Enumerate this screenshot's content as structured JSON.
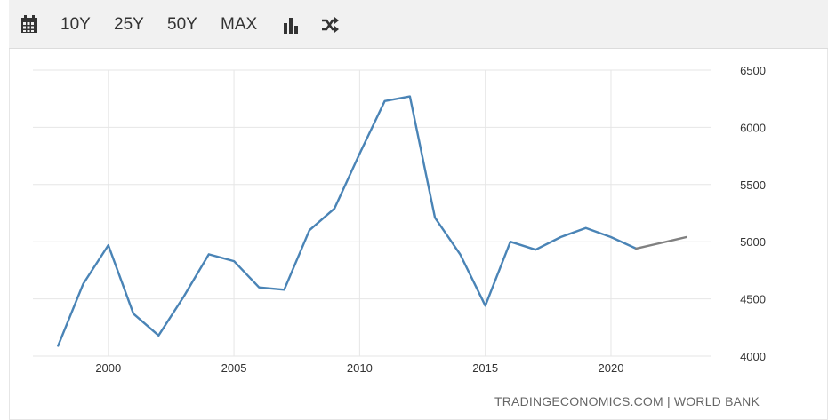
{
  "toolbar": {
    "buttons": [
      "10Y",
      "25Y",
      "50Y",
      "MAX"
    ],
    "icons": [
      "calendar-icon",
      "bar-chart-icon",
      "shuffle-icon"
    ]
  },
  "source_label": "TRADINGECONOMICS.COM | WORLD BANK",
  "colors": {
    "line": "#4a84b6",
    "forecast": "#808080",
    "grid": "#e6e6e6"
  },
  "chart_data": {
    "type": "line",
    "title": "",
    "xlabel": "",
    "ylabel": "",
    "x_ticks": [
      2000,
      2005,
      2010,
      2015,
      2020
    ],
    "y_ticks": [
      4000,
      4500,
      5000,
      5500,
      6000,
      6500
    ],
    "xlim": [
      1997,
      2024
    ],
    "ylim": [
      4000,
      6500
    ],
    "grid": true,
    "series": [
      {
        "x": [
          1998,
          1999,
          2000,
          2001,
          2002,
          2003,
          2004,
          2005,
          2006,
          2007,
          2008,
          2009,
          2010,
          2011,
          2012,
          2013,
          2014,
          2015,
          2016,
          2017,
          2018,
          2019,
          2020,
          2021
        ],
        "values": [
          4090,
          4630,
          4970,
          4370,
          4180,
          4520,
          4890,
          4830,
          4600,
          4580,
          5100,
          5290,
          5770,
          6230,
          6270,
          5210,
          4890,
          4440,
          5000,
          4930,
          5040,
          5120,
          5040,
          4940
        ]
      },
      {
        "x": [
          2021,
          2022,
          2023
        ],
        "values": [
          4940,
          4990,
          5040
        ]
      }
    ]
  }
}
